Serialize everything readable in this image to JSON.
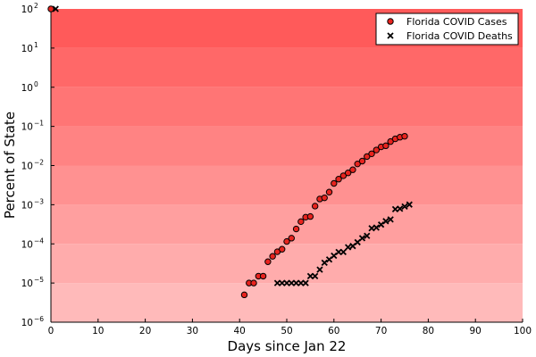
{
  "chart_data": {
    "type": "scatter",
    "title": "",
    "xlabel": "Days since Jan 22",
    "ylabel": "Percent of State",
    "xlim": [
      0,
      100
    ],
    "ylim": [
      1e-06,
      100
    ],
    "yscale": "log",
    "x_ticks": [
      0,
      10,
      20,
      30,
      40,
      50,
      60,
      70,
      80,
      90,
      100
    ],
    "y_ticks": [
      {
        "value": 1e-06,
        "base": "10",
        "exp": "−6"
      },
      {
        "value": 1e-05,
        "base": "10",
        "exp": "−5"
      },
      {
        "value": 0.0001,
        "base": "10",
        "exp": "−4"
      },
      {
        "value": 0.001,
        "base": "10",
        "exp": "−3"
      },
      {
        "value": 0.01,
        "base": "10",
        "exp": "−2"
      },
      {
        "value": 0.1,
        "base": "10",
        "exp": "−1"
      },
      {
        "value": 1,
        "base": "10",
        "exp": "0"
      },
      {
        "value": 10,
        "base": "10",
        "exp": "1"
      },
      {
        "value": 100,
        "base": "10",
        "exp": "2"
      }
    ],
    "grid": false,
    "legend_position": "top-right",
    "background": "red gradient bands, darker at top",
    "series": [
      {
        "name": "Florida COVID Cases",
        "marker": "circle",
        "color": "#e8231e",
        "x": [
          41,
          42,
          43,
          44,
          45,
          46,
          47,
          48,
          49,
          50,
          51,
          52,
          53,
          54,
          55,
          56,
          57,
          58,
          59,
          60,
          61,
          62,
          63,
          64,
          65,
          66,
          67,
          68,
          69,
          70,
          71,
          72,
          73,
          74,
          75
        ],
        "y": [
          5e-06,
          1e-05,
          1e-05,
          1.5e-05,
          1.5e-05,
          3.5e-05,
          4.8e-05,
          6.3e-05,
          7.3e-05,
          0.000115,
          0.00014,
          0.00024,
          0.00037,
          0.00048,
          0.0005,
          0.00092,
          0.0014,
          0.0015,
          0.0021,
          0.0035,
          0.0045,
          0.0055,
          0.0065,
          0.0078,
          0.011,
          0.013,
          0.017,
          0.02,
          0.025,
          0.03,
          0.032,
          0.041,
          0.048,
          0.053,
          0.056
        ]
      },
      {
        "name": "Florida COVID Deaths",
        "marker": "x",
        "color": "#000000",
        "x": [
          48,
          49,
          50,
          51,
          52,
          53,
          54,
          55,
          56,
          57,
          58,
          59,
          60,
          61,
          62,
          63,
          64,
          65,
          66,
          67,
          68,
          69,
          70,
          71,
          72,
          73,
          74,
          75,
          76
        ],
        "y": [
          1e-05,
          1e-05,
          1e-05,
          1e-05,
          1e-05,
          1e-05,
          1e-05,
          1.5e-05,
          1.5e-05,
          2.2e-05,
          3.3e-05,
          4e-05,
          5e-05,
          6.2e-05,
          6.2e-05,
          8.2e-05,
          8.8e-05,
          0.00011,
          0.00014,
          0.00016,
          0.00025,
          0.00026,
          0.00031,
          0.00038,
          0.00042,
          0.00077,
          0.00079,
          0.0009,
          0.00101
        ]
      }
    ],
    "outlier_markers": [
      {
        "series": "Florida COVID Cases",
        "x": 0,
        "y": 100
      },
      {
        "series": "Florida COVID Deaths",
        "x": 1,
        "y": 100
      }
    ]
  }
}
